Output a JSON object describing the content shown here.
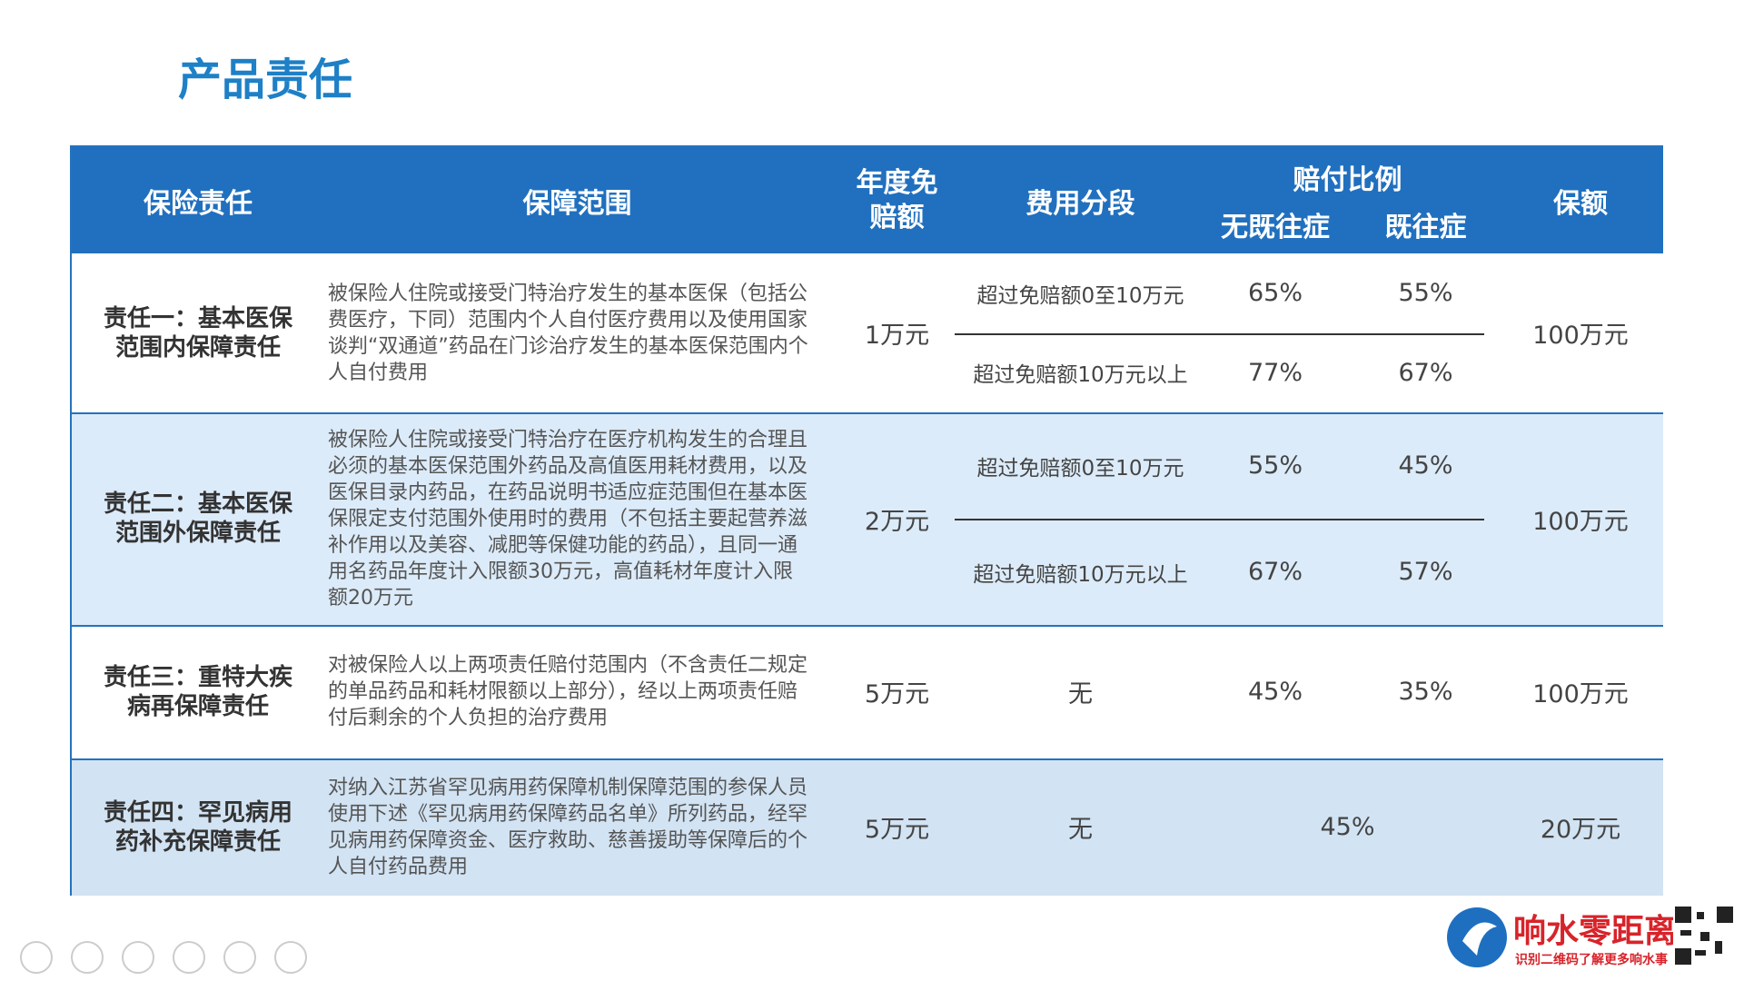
{
  "title": "产品责任",
  "table": {
    "header": {
      "name": "保险责任",
      "scope": "保障范围",
      "deductible": "年度免赔额",
      "segment": "费用分段",
      "ratio": "赔付比例",
      "no_pre": "无既往症",
      "pre": "既往症",
      "limit": "保额"
    },
    "rows": [
      {
        "name": "责任一：基本医保范围内保障责任",
        "scope": "被保险人住院或接受门特治疗发生的基本医保（包括公费医疗，下同）范围内个人自付医疗费用以及使用国家谈判“双通道”药品在门诊治疗发生的基本医保范围内个人自付费用",
        "deductible": "1万元",
        "segments": [
          {
            "range": "超过免赔额0至10万元",
            "no_pre": "65%",
            "pre": "55%"
          },
          {
            "range": "超过免赔额10万元以上",
            "no_pre": "77%",
            "pre": "67%"
          }
        ],
        "limit": "100万元"
      },
      {
        "name": "责任二：基本医保范围外保障责任",
        "scope": "被保险人住院或接受门特治疗在医疗机构发生的合理且必须的基本医保范围外药品及高值医用耗材费用，以及医保目录内药品，在药品说明书适应症范围但在基本医保限定支付范围外使用时的费用（不包括主要起营养滋补作用以及美容、减肥等保健功能的药品），且同一通用名药品年度计入限额30万元，高值耗材年度计入限额20万元",
        "deductible": "2万元",
        "segments": [
          {
            "range": "超过免赔额0至10万元",
            "no_pre": "55%",
            "pre": "45%"
          },
          {
            "range": "超过免赔额10万元以上",
            "no_pre": "67%",
            "pre": "57%"
          }
        ],
        "limit": "100万元"
      },
      {
        "name": "责任三：重特大疾病再保障责任",
        "scope": "对被保险人以上两项责任赔付范围内（不含责任二规定的单品药品和耗材限额以上部分），经以上两项责任赔付后剩余的个人负担的治疗费用",
        "deductible": "5万元",
        "segments": [
          {
            "range": "无",
            "no_pre": "45%",
            "pre": "35%"
          }
        ],
        "limit": "100万元"
      },
      {
        "name": "责任四：罕见病用药补充保障责任",
        "scope": "对纳入江苏省罕见病用药保障机制保障范围的参保人员使用下述《罕见病用药保障药品名单》所列药品，经罕见病用药保障资金、医疗救助、慈善援助等保障后的个人自付药品费用",
        "deductible": "5万元",
        "segments": [
          {
            "range": "无",
            "ratio": "45%"
          }
        ],
        "limit": "20万元"
      }
    ]
  },
  "watermark": {
    "name": "响水零距离",
    "tagline": "识别二维码了解更多响水事"
  }
}
